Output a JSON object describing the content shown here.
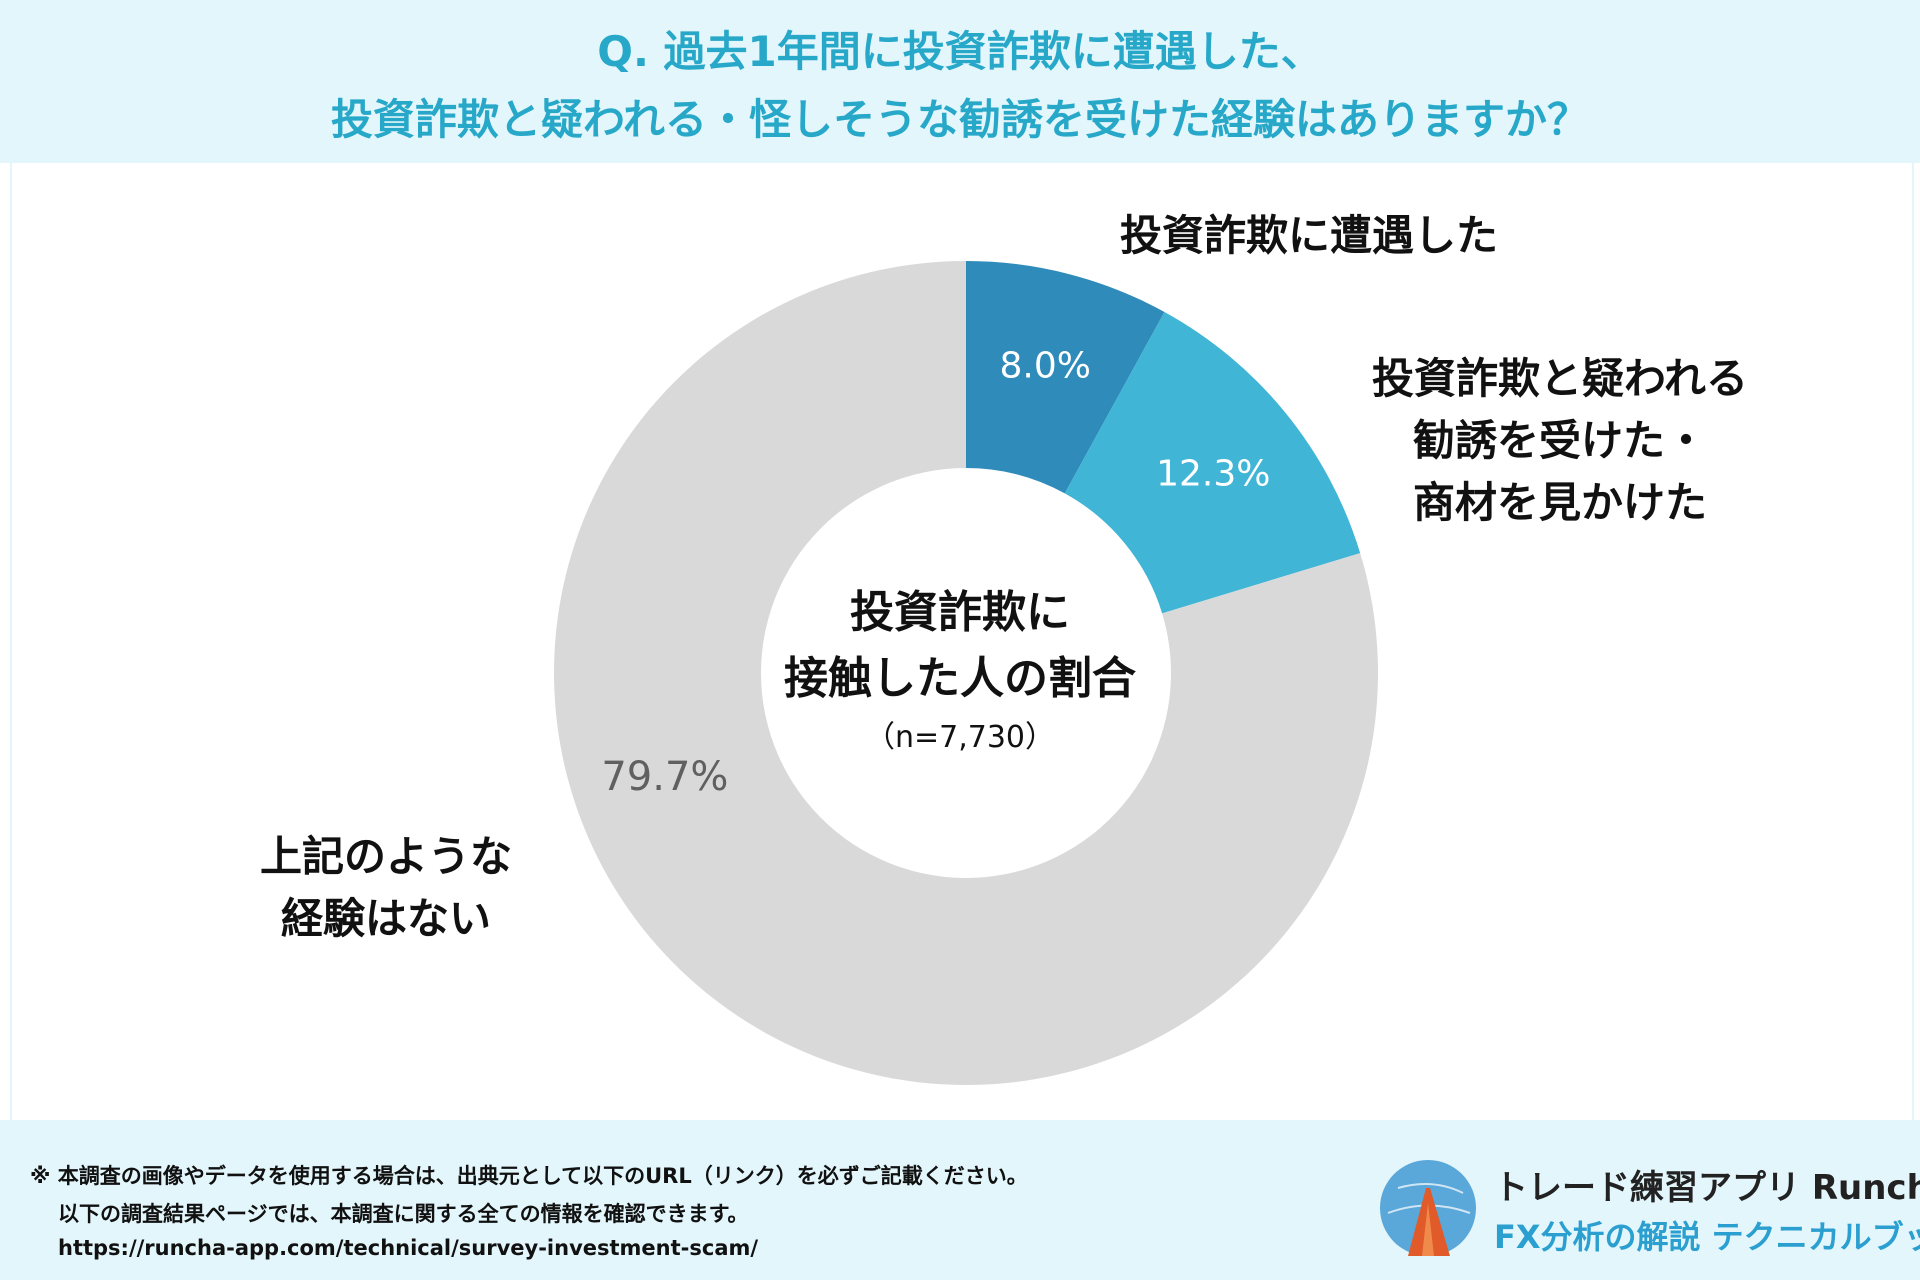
{
  "header": {
    "question_line1": "Q. 過去1年間に投資詐欺に遭遇した、",
    "question_line2": "投資詐欺と疑われる・怪しそうな勧誘を受けた経験はありますか？"
  },
  "center": {
    "title": "投資詐欺に接触した人の割合",
    "n": "（n=7,730）"
  },
  "chart_data": {
    "type": "pie",
    "title": "",
    "categories": [
      "投資詐欺に遭遇した",
      "投資詐欺と疑われる勧誘を受けた・商材を見かけた",
      "上記のような経験はない"
    ],
    "values": [
      8.0,
      12.3,
      79.7
    ],
    "value_labels": [
      "8.0%",
      "12.3%",
      "79.7%"
    ],
    "colors": [
      "#2e8bba",
      "#40b5d6",
      "#d9d9d9"
    ],
    "donut": true,
    "label_lines": [
      [
        "投資詐欺に遭遇した"
      ],
      [
        "投資詐欺と疑われる",
        "勧誘を受けた・",
        "商材を見かけた"
      ],
      [
        "上記のような",
        "経験はない"
      ]
    ]
  },
  "footer": {
    "note1": "※ 本調査の画像やデータを使用する場合は、出典元として以下のURL（リンク）を必ずご記載ください。",
    "note2": "以下の調査結果ページでは、本調査に関する全ての情報を確認できます。",
    "url": "https://runcha-app.com/technical/survey-investment-scam/",
    "brand_line1": "トレード練習アプリ  Runcha",
    "brand_line2": "FX分析の解説 テクニカルブック",
    "logo_icon": "runcha-logo-icon"
  }
}
